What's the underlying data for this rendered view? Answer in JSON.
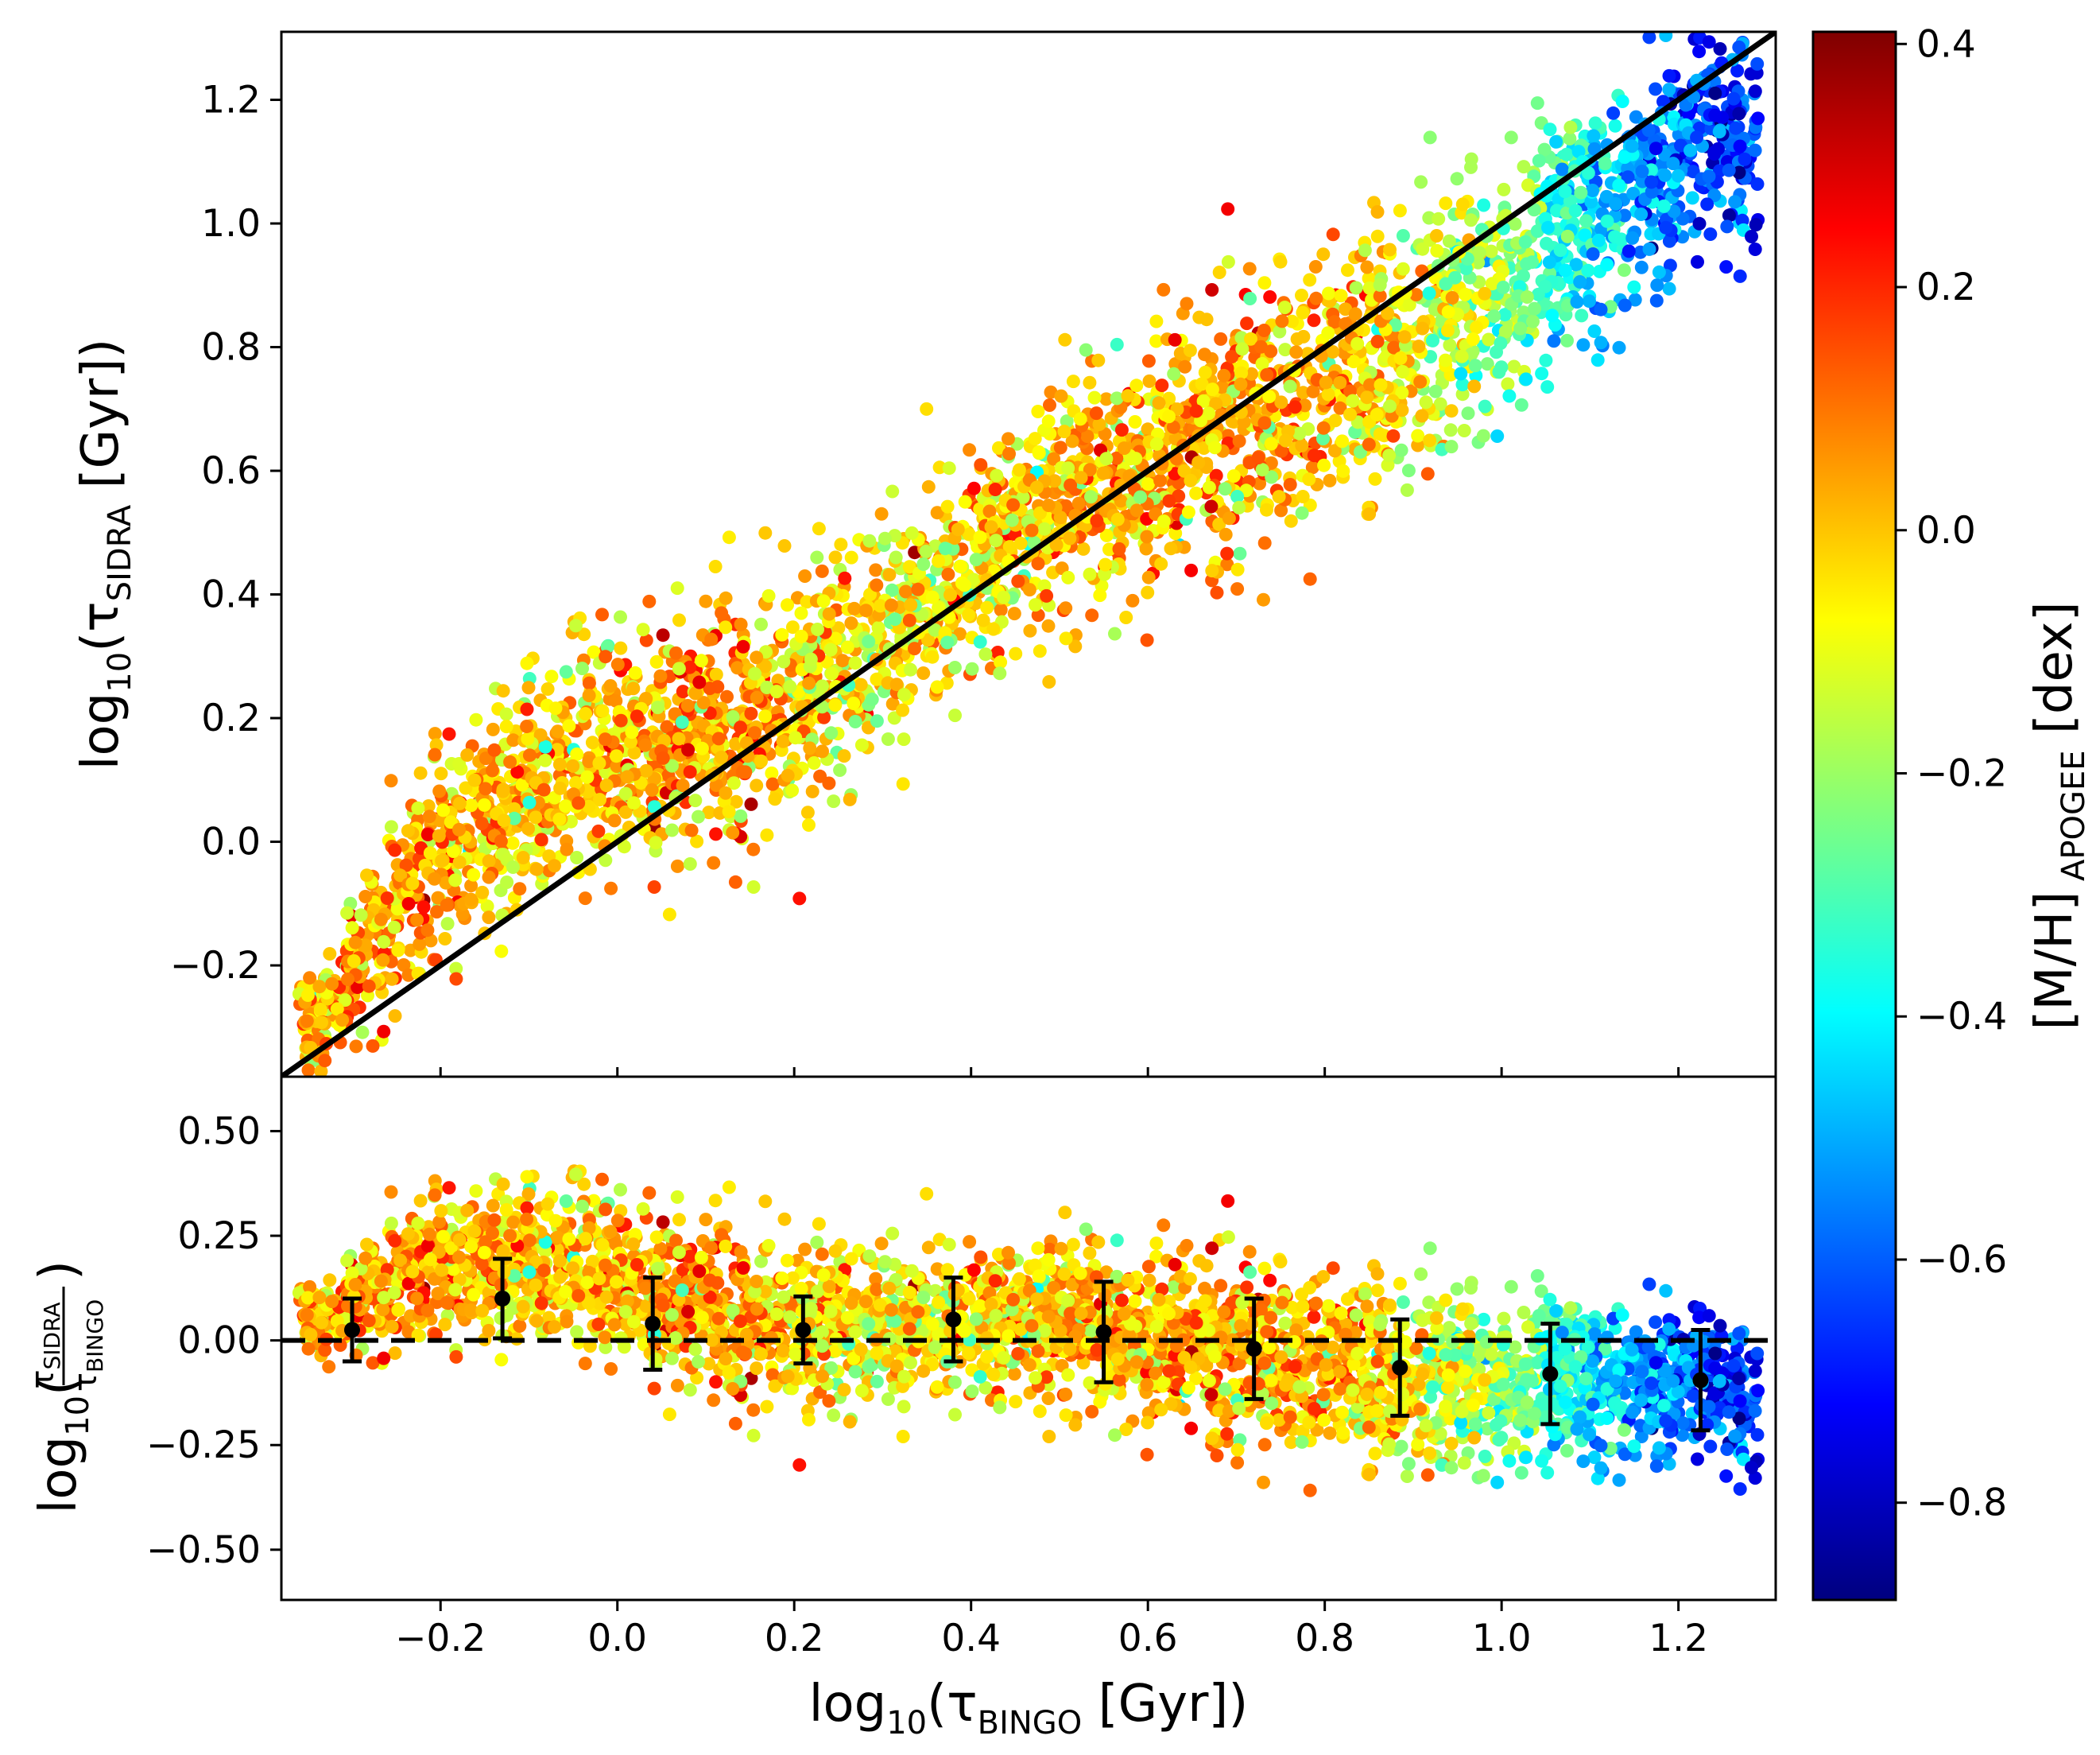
{
  "chart_data": [
    {
      "type": "scatter",
      "panel": "top",
      "xlabel": {
        "prefix": "log",
        "sub10": "10",
        "open": "(τ",
        "sub": "BINGO",
        "suffix": " [Gyr])"
      },
      "ylabel": {
        "prefix": "log",
        "sub10": "10",
        "open": "(τ",
        "sub": "SIDRA",
        "suffix": " [Gyr])"
      },
      "xlim": [
        -0.38,
        1.31
      ],
      "ylim": [
        -0.38,
        1.31
      ],
      "grid": false,
      "yticks": [
        -0.2,
        0.0,
        0.2,
        0.4,
        0.6,
        0.8,
        1.0,
        1.2
      ],
      "ytick_labels": [
        "−0.2",
        "0.0",
        "0.2",
        "0.4",
        "0.6",
        "0.8",
        "1.0",
        "1.2"
      ],
      "reference_line": {
        "style": "solid",
        "color": "#000000",
        "slope": 1,
        "intercept": 0
      },
      "point_density_profile": {
        "x_centers": [
          -0.34,
          -0.21,
          -0.05,
          0.12,
          0.3,
          0.48,
          0.65,
          0.82,
          0.99,
          1.12,
          1.22
        ],
        "y_mean": [
          -0.3,
          -0.02,
          0.12,
          0.19,
          0.33,
          0.52,
          0.64,
          0.74,
          0.89,
          1.02,
          1.14
        ],
        "y_spread": [
          0.05,
          0.12,
          0.12,
          0.13,
          0.11,
          0.12,
          0.13,
          0.14,
          0.13,
          0.12,
          0.11
        ],
        "metallicity_mean": [
          0.0,
          0.05,
          -0.02,
          0.05,
          -0.08,
          0.0,
          0.03,
          0.0,
          -0.18,
          -0.45,
          -0.65
        ]
      }
    },
    {
      "type": "scatter",
      "panel": "bottom",
      "ylabel": {
        "prefix": "log",
        "sub10": "10",
        "num": "τ",
        "num_sub": "SIDRA",
        "den": "τ",
        "den_sub": "BINGO"
      },
      "xlim": [
        -0.38,
        1.31
      ],
      "ylim": [
        -0.62,
        0.63
      ],
      "xticks": [
        -0.2,
        0.0,
        0.2,
        0.4,
        0.6,
        0.8,
        1.0,
        1.2
      ],
      "xtick_labels": [
        "−0.2",
        "0.0",
        "0.2",
        "0.4",
        "0.6",
        "0.8",
        "1.0",
        "1.2"
      ],
      "yticks": [
        -0.5,
        -0.25,
        0.0,
        0.25,
        0.5
      ],
      "ytick_labels": [
        "−0.50",
        "−0.25",
        "0.00",
        "0.25",
        "0.50"
      ],
      "reference_line": {
        "style": "dashed",
        "color": "#000000",
        "y": 0.0
      },
      "binned_means": {
        "x": [
          -0.3,
          -0.13,
          0.04,
          0.21,
          0.38,
          0.55,
          0.72,
          0.885,
          1.055,
          1.225
        ],
        "y": [
          0.025,
          0.1,
          0.04,
          0.025,
          0.05,
          0.02,
          -0.02,
          -0.065,
          -0.08,
          -0.095
        ],
        "err": [
          0.075,
          0.095,
          0.11,
          0.08,
          0.1,
          0.12,
          0.12,
          0.115,
          0.12,
          0.12
        ]
      }
    }
  ],
  "colorbar": {
    "label_prefix": "[M/H]",
    "label_sub": "APOGEE",
    "label_suffix": " [dex]",
    "vmin": -0.88,
    "vmax": 0.41,
    "colormap": "jet",
    "ticks": [
      0.4,
      0.2,
      0.0,
      -0.2,
      -0.4,
      -0.6,
      -0.8
    ],
    "tick_labels": [
      "0.4",
      "0.2",
      "0.0",
      "−0.2",
      "−0.4",
      "−0.6",
      "−0.8"
    ],
    "stops": [
      "#00007f",
      "#0000ff",
      "#007fff",
      "#00ffff",
      "#7fff7f",
      "#ffff00",
      "#ff7f00",
      "#ff0000",
      "#7f0000"
    ]
  }
}
